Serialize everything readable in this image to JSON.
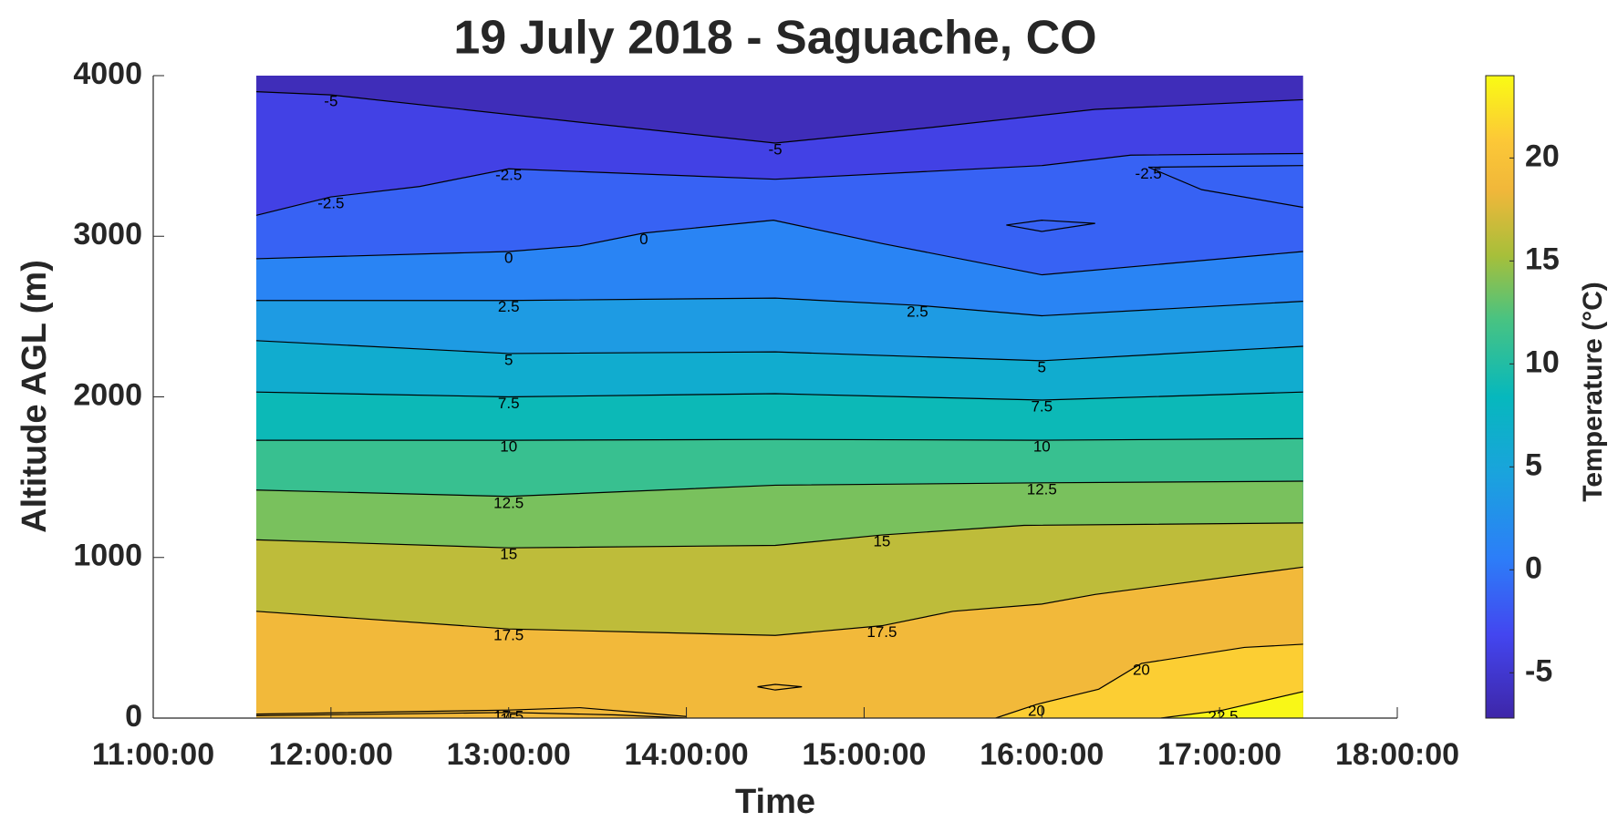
{
  "chart_data": {
    "type": "contour",
    "title": "19 July 2018 - Saguache, CO",
    "xlabel": "Time",
    "ylabel": "Altitude AGL (m)",
    "xlim": [
      11,
      18
    ],
    "xticks": [
      {
        "value": 11,
        "label": "11:00:00"
      },
      {
        "value": 12,
        "label": "12:00:00"
      },
      {
        "value": 13,
        "label": "13:00:00"
      },
      {
        "value": 14,
        "label": "14:00:00"
      },
      {
        "value": 15,
        "label": "15:00:00"
      },
      {
        "value": 16,
        "label": "16:00:00"
      },
      {
        "value": 17,
        "label": "17:00:00"
      },
      {
        "value": 18,
        "label": "18:00:00"
      }
    ],
    "ylim": [
      0,
      4000
    ],
    "yticks": [
      0,
      1000,
      2000,
      3000,
      4000
    ],
    "colormap": "parula",
    "clim": [
      -7.2,
      24
    ],
    "cticks": [
      -5,
      0,
      5,
      10,
      15,
      20
    ],
    "colorbar_label": "Temperature (°C)",
    "line_color": "#000000",
    "contours": [
      {
        "level": -5,
        "x": [
          11.58,
          12.0,
          13.4,
          14.5,
          15.4,
          16.3,
          17.47
        ],
        "y": [
          3900,
          3880,
          3710,
          3580,
          3680,
          3790,
          3850
        ]
      },
      {
        "level": -2.5,
        "x": [
          11.58,
          12.0,
          12.5,
          13.0,
          14.5,
          16.0,
          16.5,
          17.47
        ],
        "y": [
          3130,
          3245,
          3310,
          3420,
          3355,
          3440,
          3505,
          3515
        ]
      },
      {
        "level": -2.5,
        "x": [
          17.47,
          16.6,
          16.9,
          17.47
        ],
        "y": [
          3440,
          3430,
          3290,
          3180
        ]
      },
      {
        "level": -2.5,
        "x": [
          15.8,
          16.0,
          16.3,
          16.0,
          15.8
        ],
        "y": [
          3070,
          3100,
          3080,
          3030,
          3070
        ]
      },
      {
        "level": 0,
        "x": [
          11.58,
          13.0,
          13.4,
          13.76,
          14.49,
          15.1,
          16.0,
          17.47
        ],
        "y": [
          2860,
          2905,
          2940,
          3020,
          3100,
          2955,
          2760,
          2905
        ]
      },
      {
        "level": 2.5,
        "x": [
          11.58,
          13.0,
          14.5,
          15.3,
          16.0,
          17.47
        ],
        "y": [
          2600,
          2600,
          2615,
          2570,
          2505,
          2595
        ]
      },
      {
        "level": 5,
        "x": [
          11.58,
          13.0,
          14.5,
          16.0,
          17.47
        ],
        "y": [
          2350,
          2270,
          2280,
          2225,
          2315
        ]
      },
      {
        "level": 7.5,
        "x": [
          11.58,
          13.0,
          14.5,
          16.0,
          17.47
        ],
        "y": [
          2030,
          2000,
          2020,
          1980,
          2030
        ]
      },
      {
        "level": 10,
        "x": [
          11.58,
          13.0,
          14.5,
          16.0,
          17.47
        ],
        "y": [
          1730,
          1730,
          1735,
          1730,
          1740
        ]
      },
      {
        "level": 12.5,
        "x": [
          11.58,
          13.0,
          14.5,
          16.0,
          17.47
        ],
        "y": [
          1420,
          1380,
          1450,
          1465,
          1475
        ]
      },
      {
        "level": 15,
        "x": [
          11.58,
          13.0,
          14.5,
          15.1,
          15.9,
          17.47
        ],
        "y": [
          1110,
          1060,
          1075,
          1140,
          1200,
          1215
        ]
      },
      {
        "level": 15,
        "x": [
          11.58,
          13.0,
          13.6,
          14.0
        ],
        "y": [
          15,
          35,
          20,
          0
        ]
      },
      {
        "level": 17.5,
        "x": [
          11.58,
          13.0,
          14.5,
          15.1,
          15.5,
          16.0,
          16.3,
          17.47
        ],
        "y": [
          665,
          555,
          515,
          575,
          665,
          710,
          770,
          940
        ]
      },
      {
        "level": 17.5,
        "x": [
          11.58,
          13.0,
          13.4,
          14.0
        ],
        "y": [
          25,
          50,
          65,
          10
        ]
      },
      {
        "level": 17.5,
        "x": [
          14.4,
          14.5,
          14.65,
          14.5,
          14.4
        ],
        "y": [
          195,
          210,
          195,
          175,
          195
        ]
      },
      {
        "level": 20,
        "x": [
          15.74,
          15.97,
          16.32,
          16.56,
          17.14,
          17.47
        ],
        "y": [
          0,
          85,
          180,
          340,
          440,
          460
        ]
      },
      {
        "level": 22.5,
        "x": [
          16.67,
          17.02,
          17.47
        ],
        "y": [
          0,
          50,
          165
        ]
      }
    ]
  }
}
